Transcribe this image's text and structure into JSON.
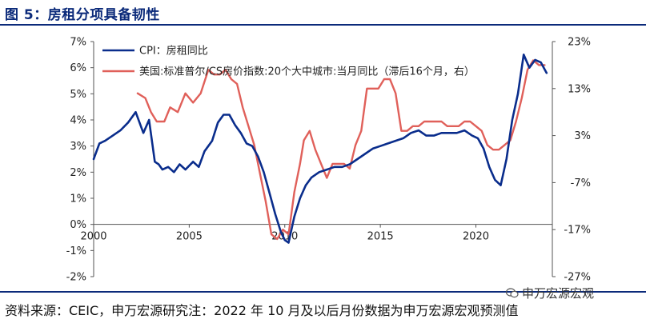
{
  "figure_title": "图 5：房租分项具备韧性",
  "source_note": "资料来源：CEIC，申万宏源研究注：2022 年 10 月及以后月份数据为申万宏源宏观预测值",
  "watermark": "申万宏源宏观",
  "chart_data": {
    "type": "line",
    "title": "",
    "xlabel": "",
    "ylabel": "",
    "x_range": [
      2000,
      2024
    ],
    "x_ticks": [
      "2000",
      "2005",
      "2010",
      "2015",
      "2020"
    ],
    "y_left_range": [
      -2,
      7
    ],
    "y_left_ticks": [
      "7%",
      "6%",
      "5%",
      "4%",
      "3%",
      "2%",
      "1%",
      "0%",
      "-1%",
      "-2%"
    ],
    "y_right_range": [
      -27,
      23
    ],
    "y_right_ticks": [
      "23%",
      "13%",
      "3%",
      "-7%",
      "-17%",
      "-27%"
    ],
    "legend_position": "top-center",
    "colors": {
      "cpi": "#0a2d8c",
      "cs": "#e0605a"
    },
    "series": [
      {
        "name": "CPI：房租同比",
        "axis": "left",
        "color": "#0a2d8c",
        "x": [
          2000.0,
          2000.3,
          2000.6,
          2001.0,
          2001.4,
          2001.8,
          2002.2,
          2002.6,
          2002.9,
          2003.2,
          2003.4,
          2003.6,
          2003.9,
          2004.2,
          2004.5,
          2004.8,
          2005.2,
          2005.5,
          2005.8,
          2006.2,
          2006.5,
          2006.8,
          2007.1,
          2007.4,
          2007.7,
          2008.0,
          2008.3,
          2008.6,
          2008.9,
          2009.2,
          2009.5,
          2009.8,
          2010.0,
          2010.2,
          2010.5,
          2010.8,
          2011.1,
          2011.4,
          2011.8,
          2012.2,
          2012.6,
          2013.0,
          2013.4,
          2013.8,
          2014.2,
          2014.6,
          2015.0,
          2015.4,
          2015.8,
          2016.2,
          2016.6,
          2017.0,
          2017.4,
          2017.8,
          2018.2,
          2018.6,
          2019.0,
          2019.4,
          2019.8,
          2020.1,
          2020.4,
          2020.7,
          2021.0,
          2021.3,
          2021.6,
          2021.9,
          2022.2,
          2022.5,
          2022.8,
          2023.1,
          2023.4,
          2023.7
        ],
        "values": [
          2.5,
          3.1,
          3.2,
          3.4,
          3.6,
          3.9,
          4.3,
          3.5,
          4.0,
          2.4,
          2.3,
          2.1,
          2.2,
          2.0,
          2.3,
          2.1,
          2.4,
          2.2,
          2.8,
          3.2,
          3.9,
          4.2,
          4.2,
          3.8,
          3.5,
          3.1,
          3.0,
          2.6,
          2.0,
          1.2,
          0.4,
          -0.3,
          -0.6,
          -0.7,
          0.3,
          1.0,
          1.5,
          1.8,
          2.0,
          2.1,
          2.2,
          2.2,
          2.3,
          2.5,
          2.7,
          2.9,
          3.0,
          3.1,
          3.2,
          3.3,
          3.5,
          3.6,
          3.4,
          3.4,
          3.5,
          3.5,
          3.5,
          3.6,
          3.4,
          3.3,
          2.9,
          2.2,
          1.7,
          1.5,
          2.5,
          4.0,
          5.0,
          6.5,
          6.0,
          6.3,
          6.2,
          5.8
        ]
      },
      {
        "name": "美国:标准普尔/CS房价指数:20个大中城市:当月同比（滞后16个月，右）",
        "axis": "right",
        "color": "#e0605a",
        "x": [
          2002.3,
          2002.7,
          2003.0,
          2003.3,
          2003.7,
          2004.0,
          2004.4,
          2004.8,
          2005.2,
          2005.6,
          2006.0,
          2006.3,
          2006.6,
          2006.9,
          2007.2,
          2007.5,
          2007.8,
          2008.1,
          2008.4,
          2008.7,
          2009.0,
          2009.3,
          2009.6,
          2009.9,
          2010.2,
          2010.5,
          2010.8,
          2011.0,
          2011.3,
          2011.6,
          2011.9,
          2012.2,
          2012.5,
          2012.8,
          2013.1,
          2013.4,
          2013.7,
          2014.0,
          2014.3,
          2014.6,
          2014.9,
          2015.2,
          2015.5,
          2015.8,
          2016.1,
          2016.4,
          2016.7,
          2017.0,
          2017.3,
          2017.6,
          2017.9,
          2018.2,
          2018.5,
          2018.8,
          2019.1,
          2019.4,
          2019.7,
          2020.0,
          2020.3,
          2020.6,
          2020.9,
          2021.2,
          2021.5,
          2021.8,
          2022.1,
          2022.4,
          2022.7,
          2023.0,
          2023.3,
          2023.6
        ],
        "values": [
          12,
          11,
          8,
          6,
          6,
          9,
          8,
          12,
          10,
          12,
          17,
          16,
          16,
          17,
          15,
          14,
          9,
          5,
          1,
          -5,
          -11,
          -18,
          -19,
          -17,
          -18,
          -9,
          -3,
          2,
          4,
          0,
          -3,
          -6,
          -3,
          -3,
          -3,
          -4,
          1,
          4,
          13,
          13,
          13,
          15,
          15,
          12,
          4,
          4,
          5,
          5,
          6,
          6,
          6,
          6,
          5,
          5,
          5,
          6,
          6,
          5,
          4,
          1,
          0,
          0,
          1,
          2,
          6,
          11,
          17,
          19,
          18,
          18
        ]
      }
    ]
  }
}
